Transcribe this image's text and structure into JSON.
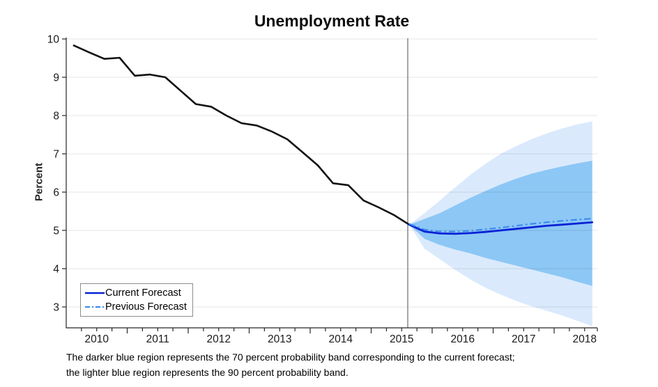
{
  "title": "Unemployment Rate",
  "axes": {
    "ylabel": "Percent"
  },
  "legend": {
    "current_label": "Current Forecast",
    "previous_label": "Previous Forecast"
  },
  "caption": {
    "line1": "The darker blue region represents the 70 percent probability band corresponding to the current forecast;",
    "line2": "the lighter blue region represents the 90 percent probability band."
  },
  "colors": {
    "historical_line": "#111111",
    "current_forecast_line": "#0822d6",
    "previous_forecast_line": "#3e8bf0",
    "band_70": "#8dc7f5",
    "band_90": "#daeafc",
    "forecast_start_line": "#808080",
    "axis": "#262626",
    "tick_label": "#1a1a1a",
    "grid": "#262626"
  },
  "chart_data": {
    "type": "line",
    "title": "Unemployment Rate",
    "xlabel": "",
    "ylabel": "Percent",
    "xlim": [
      2010,
      2018.71
    ],
    "ylim": [
      2.45,
      10
    ],
    "yticks": [
      3,
      4,
      5,
      6,
      7,
      8,
      9,
      10
    ],
    "year_labels": [
      "2010",
      "2011",
      "2012",
      "2013",
      "2014",
      "2015",
      "2016",
      "2017",
      "2018"
    ],
    "grid": "horizontal",
    "legend_position": "bottom-left",
    "forecast_start_x": 2015.6,
    "series": [
      {
        "name": "Observed unemployment rate",
        "style": "solid-black",
        "x": [
          2010.125,
          2010.375,
          2010.625,
          2010.875,
          2011.125,
          2011.375,
          2011.625,
          2011.875,
          2012.125,
          2012.375,
          2012.625,
          2012.875,
          2013.125,
          2013.375,
          2013.625,
          2013.875,
          2014.125,
          2014.375,
          2014.625,
          2014.875,
          2015.125,
          2015.375,
          2015.625
        ],
        "y": [
          9.83,
          9.65,
          9.48,
          9.51,
          9.04,
          9.07,
          9.0,
          8.65,
          8.3,
          8.23,
          8.0,
          7.8,
          7.74,
          7.58,
          7.38,
          7.04,
          6.7,
          6.23,
          6.18,
          5.78,
          5.6,
          5.4,
          5.15
        ]
      },
      {
        "name": "Current Forecast",
        "style": "solid-blue",
        "x": [
          2015.625,
          2015.875,
          2016.125,
          2016.375,
          2016.625,
          2016.875,
          2017.125,
          2017.375,
          2017.625,
          2017.875,
          2018.125,
          2018.375,
          2018.625
        ],
        "y": [
          5.15,
          4.97,
          4.92,
          4.91,
          4.93,
          4.96,
          5.0,
          5.04,
          5.08,
          5.12,
          5.15,
          5.18,
          5.21
        ]
      },
      {
        "name": "Previous Forecast",
        "style": "dash-dot-lightblue",
        "x": [
          2015.625,
          2015.875,
          2016.125,
          2016.375,
          2016.625,
          2016.875,
          2017.125,
          2017.375,
          2017.625,
          2017.875,
          2018.125,
          2018.375,
          2018.625
        ],
        "y": [
          5.17,
          5.02,
          4.97,
          4.97,
          4.99,
          5.03,
          5.07,
          5.12,
          5.17,
          5.21,
          5.25,
          5.28,
          5.31
        ]
      }
    ],
    "bands": [
      {
        "name": "90 percent probability band",
        "x": [
          2015.625,
          2015.875,
          2016.125,
          2016.375,
          2016.625,
          2016.875,
          2017.125,
          2017.375,
          2017.625,
          2017.875,
          2018.125,
          2018.375,
          2018.625
        ],
        "top": [
          5.15,
          5.45,
          5.78,
          6.12,
          6.45,
          6.74,
          7.0,
          7.2,
          7.38,
          7.53,
          7.66,
          7.77,
          7.85
        ],
        "bottom": [
          5.15,
          4.52,
          4.25,
          3.97,
          3.72,
          3.5,
          3.32,
          3.16,
          3.02,
          2.9,
          2.78,
          2.64,
          2.5
        ]
      },
      {
        "name": "70 percent probability band",
        "x": [
          2015.625,
          2015.875,
          2016.125,
          2016.375,
          2016.625,
          2016.875,
          2017.125,
          2017.375,
          2017.625,
          2017.875,
          2018.125,
          2018.375,
          2018.625
        ],
        "top": [
          5.15,
          5.3,
          5.45,
          5.65,
          5.85,
          6.03,
          6.2,
          6.35,
          6.48,
          6.58,
          6.67,
          6.75,
          6.82
        ],
        "bottom": [
          5.15,
          4.78,
          4.62,
          4.5,
          4.4,
          4.28,
          4.18,
          4.08,
          3.98,
          3.88,
          3.78,
          3.66,
          3.55
        ]
      }
    ]
  }
}
